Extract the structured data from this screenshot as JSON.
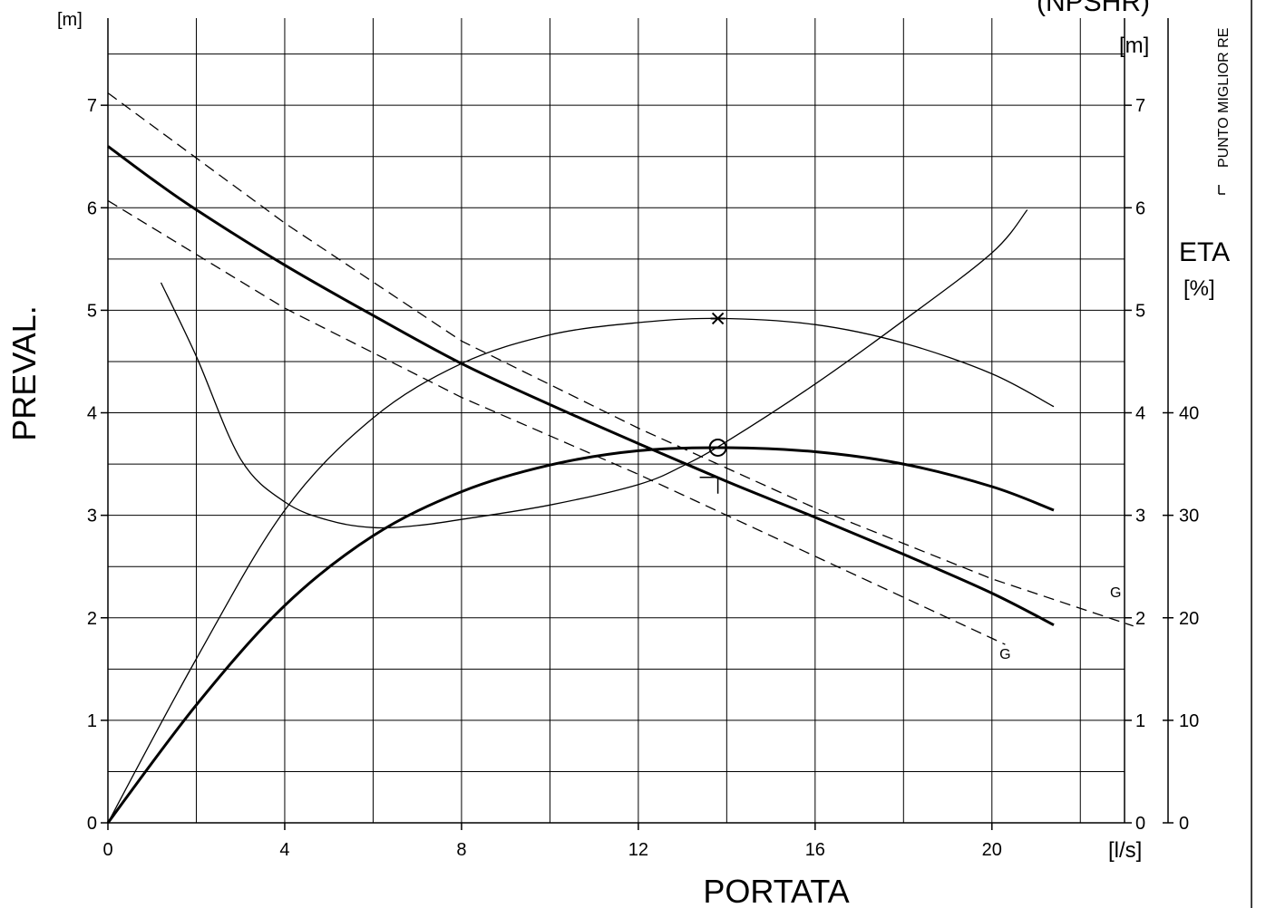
{
  "chart_data": {
    "type": "line",
    "title": "",
    "xlabel": "PORTATA",
    "x_unit": "[l/s]",
    "ylabel": "PREVAL.",
    "y_unit": "[m]",
    "right_label_top": "(NPSHR)",
    "right_unit_npshr": "[m]",
    "eff_label": "ETA",
    "eff_unit": "[%]",
    "vertical_legend": "PUNTO MIGLIOR RE",
    "marker_g": "G",
    "xlim": [
      0,
      23
    ],
    "ylim": [
      0,
      7.85
    ],
    "eff_lim": [
      0,
      78.5
    ],
    "xticks": [
      "0",
      "4",
      "8",
      "12",
      "16",
      "20"
    ],
    "xtick_values": [
      0,
      4,
      8,
      12,
      16,
      20
    ],
    "yticks": [
      "0",
      "1",
      "2",
      "3",
      "4",
      "5",
      "6",
      "7"
    ],
    "ytick_values": [
      0,
      1,
      2,
      3,
      4,
      5,
      6,
      7
    ],
    "npshr_ticks": [
      "0",
      "1",
      "2",
      "3",
      "4",
      "5",
      "6",
      "7"
    ],
    "eff_ticks": [
      "0",
      "10",
      "20",
      "30",
      "40"
    ],
    "eff_tick_values": [
      0,
      10,
      20,
      30,
      40
    ],
    "grid": true,
    "series": [
      {
        "role": "head",
        "style": "thick",
        "x": [
          0,
          1,
          2,
          4,
          6,
          8,
          10,
          12,
          14,
          16,
          18,
          20,
          21.4
        ],
        "y": [
          6.6,
          6.28,
          5.98,
          5.44,
          4.95,
          4.48,
          4.08,
          3.7,
          3.33,
          2.98,
          2.62,
          2.24,
          1.93
        ]
      },
      {
        "role": "efficiency",
        "style": "thick",
        "x": [
          0,
          2,
          4,
          6,
          8,
          10,
          12,
          14,
          16,
          18,
          20,
          21.4
        ],
        "y": [
          0,
          11.5,
          21.2,
          28.0,
          32.3,
          34.9,
          36.3,
          36.6,
          36.2,
          35.0,
          32.8,
          30.5
        ]
      },
      {
        "role": "efficiency_variant",
        "style": "thin",
        "x": [
          0,
          2,
          4,
          6,
          8,
          10,
          12,
          13.8,
          16,
          18,
          20,
          21.4
        ],
        "y": [
          0,
          16.0,
          30.5,
          39.5,
          44.8,
          47.6,
          48.8,
          49.2,
          48.6,
          46.8,
          43.8,
          40.6
        ]
      },
      {
        "role": "npshr",
        "style": "thin",
        "x": [
          1.2,
          2,
          3,
          4,
          5,
          6,
          7,
          8,
          10,
          12,
          13,
          14,
          16,
          18,
          20,
          20.8
        ],
        "y": [
          5.27,
          4.55,
          3.55,
          3.13,
          2.95,
          2.88,
          2.9,
          2.96,
          3.1,
          3.3,
          3.48,
          3.72,
          4.28,
          4.9,
          5.56,
          5.98
        ]
      },
      {
        "role": "head_upper",
        "style": "dashed",
        "marker": "G",
        "x": [
          0,
          4,
          8,
          12,
          16,
          20,
          23.2
        ],
        "y": [
          7.12,
          5.85,
          4.7,
          3.85,
          3.07,
          2.38,
          1.92
        ]
      },
      {
        "role": "head_lower",
        "style": "dashed",
        "marker": "G",
        "x": [
          0,
          4,
          8,
          12,
          16,
          20,
          20.3
        ],
        "y": [
          6.07,
          5.02,
          4.15,
          3.4,
          2.6,
          1.8,
          1.74
        ]
      }
    ],
    "duty_point": {
      "x": 13.8,
      "y": 3.66
    },
    "best_efficiency_point": {
      "x": 13.8,
      "eff": 49.2
    },
    "best_efficiency_head_mark": {
      "x": 13.8,
      "y": 3.37
    },
    "g_label_positions": [
      {
        "x": 22.8,
        "y": 2.2
      },
      {
        "x": 20.3,
        "y": 1.6
      }
    ]
  }
}
